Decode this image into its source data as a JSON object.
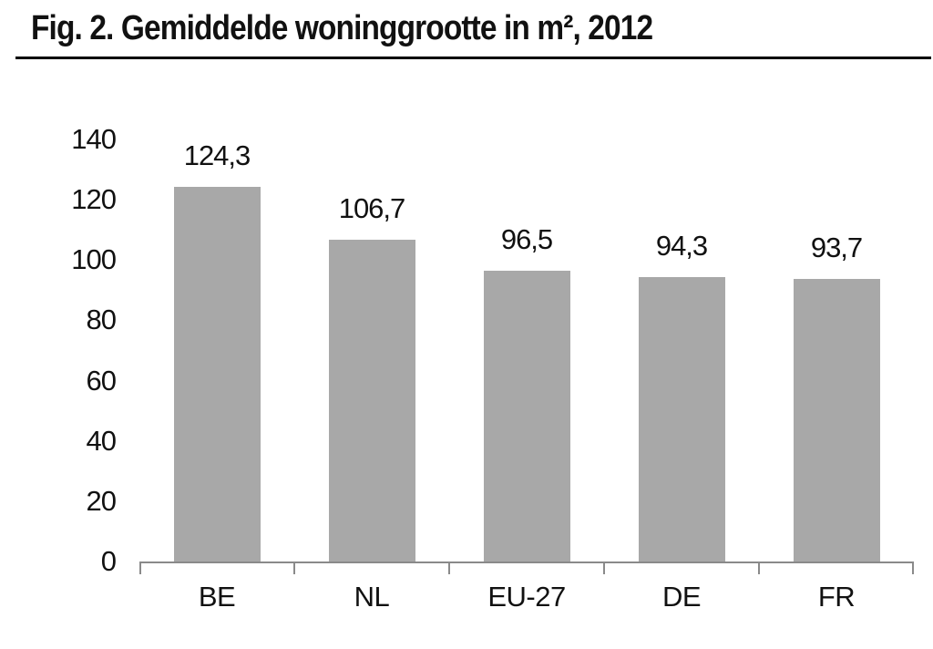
{
  "header": {
    "title": "Fig. 2. Gemiddelde woninggrootte in m², 2012"
  },
  "chart_data": {
    "type": "bar",
    "title": "Fig. 2. Gemiddelde woninggrootte in m², 2012",
    "categories": [
      "BE",
      "NL",
      "EU-27",
      "DE",
      "FR"
    ],
    "values": [
      124.3,
      106.7,
      96.5,
      94.3,
      93.7
    ],
    "value_labels": [
      "124,3",
      "106,7",
      "96,5",
      "94,3",
      "93,7"
    ],
    "xlabel": "",
    "ylabel": "",
    "ylim": [
      0,
      140
    ],
    "yticks": [
      0,
      20,
      40,
      60,
      80,
      100,
      120,
      140
    ],
    "grid": false,
    "legend": null,
    "decimal_separator": ",",
    "colors": {
      "bar": "#a8a8a8",
      "axis": "#8a8a8a",
      "text": "#111111",
      "title_rule": "#000000",
      "background": "#ffffff"
    }
  }
}
